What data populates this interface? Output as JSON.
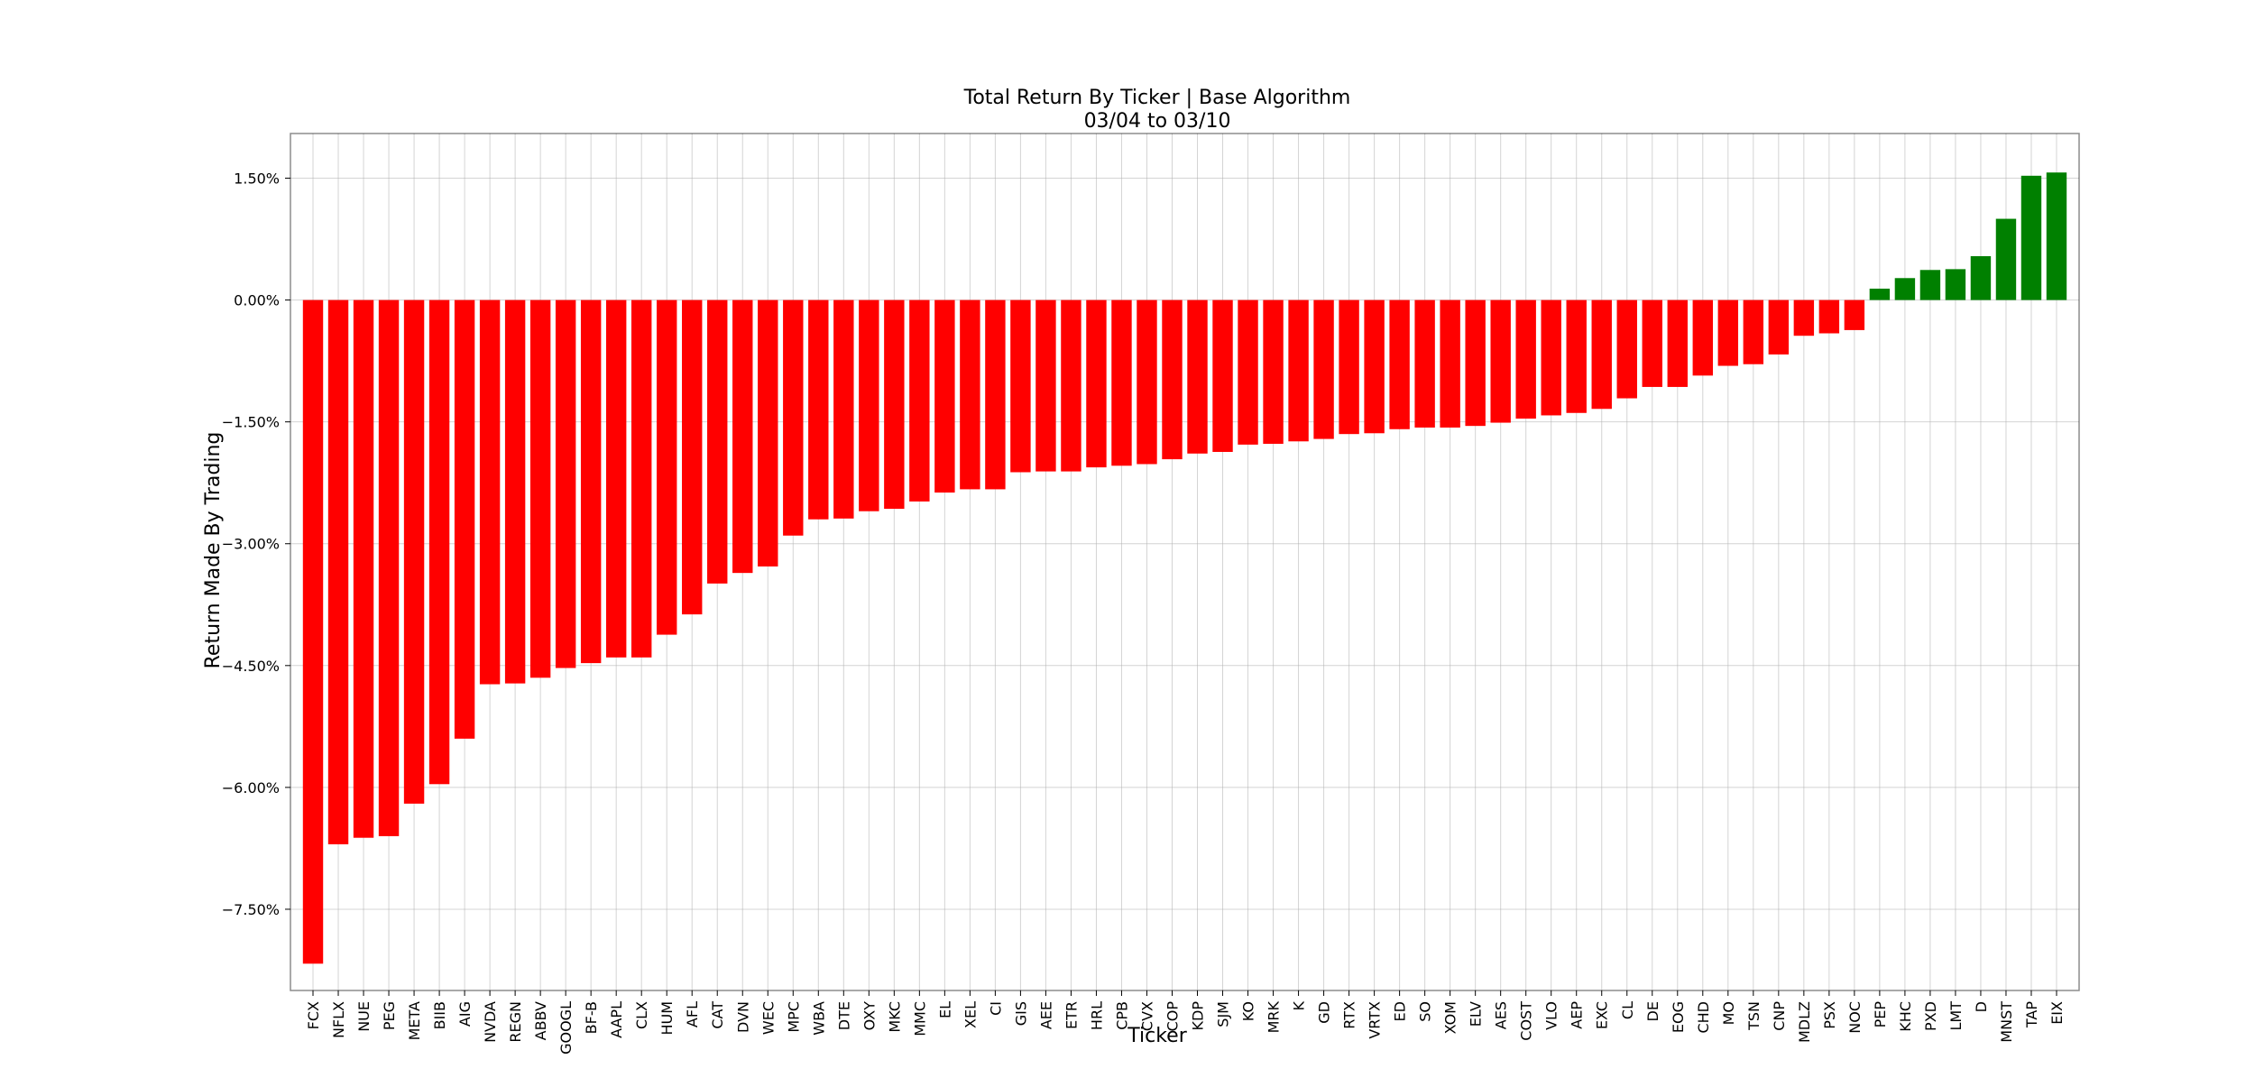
{
  "chart_data": {
    "type": "bar",
    "title": "Total Return By Ticker | Base Algorithm",
    "subtitle": "03/04 to 03/10",
    "xlabel": "Ticker",
    "ylabel": "Return Made By Trading",
    "ylim": [
      -8.5,
      2.05
    ],
    "yticks": [
      1.5,
      0.0,
      -1.5,
      -3.0,
      -4.5,
      -6.0,
      -7.5
    ],
    "ytick_labels": [
      "1.50%",
      "0.00%",
      "−1.50%",
      "−3.00%",
      "−4.50%",
      "−6.00%",
      "−7.50%"
    ],
    "grid": true,
    "positive_color": "#008000",
    "negative_color": "#ff0000",
    "categories": [
      "FCX",
      "NFLX",
      "NUE",
      "PEG",
      "META",
      "BIIB",
      "AIG",
      "NVDA",
      "REGN",
      "ABBV",
      "GOOGL",
      "BF-B",
      "AAPL",
      "CLX",
      "HUM",
      "AFL",
      "CAT",
      "DVN",
      "WEC",
      "MPC",
      "WBA",
      "DTE",
      "OXY",
      "MKC",
      "MMC",
      "EL",
      "XEL",
      "CI",
      "GIS",
      "AEE",
      "ETR",
      "HRL",
      "CPB",
      "CVX",
      "COP",
      "KDP",
      "SJM",
      "KO",
      "MRK",
      "K",
      "GD",
      "RTX",
      "VRTX",
      "ED",
      "SO",
      "XOM",
      "ELV",
      "AES",
      "COST",
      "VLO",
      "AEP",
      "EXC",
      "CL",
      "DE",
      "EOG",
      "CHD",
      "MO",
      "TSN",
      "CNP",
      "MDLZ",
      "PSX",
      "NOC",
      "PEP",
      "KHC",
      "PXD",
      "LMT",
      "D",
      "MNST",
      "TAP",
      "EIX"
    ],
    "values": [
      -8.17,
      -6.7,
      -6.62,
      -6.6,
      -6.2,
      -5.96,
      -5.4,
      -4.73,
      -4.72,
      -4.65,
      -4.53,
      -4.47,
      -4.4,
      -4.4,
      -4.12,
      -3.87,
      -3.49,
      -3.36,
      -3.28,
      -2.9,
      -2.7,
      -2.69,
      -2.6,
      -2.57,
      -2.48,
      -2.37,
      -2.33,
      -2.33,
      -2.12,
      -2.11,
      -2.11,
      -2.06,
      -2.04,
      -2.02,
      -1.96,
      -1.89,
      -1.87,
      -1.78,
      -1.77,
      -1.74,
      -1.71,
      -1.65,
      -1.64,
      -1.59,
      -1.57,
      -1.57,
      -1.55,
      -1.51,
      -1.46,
      -1.42,
      -1.39,
      -1.34,
      -1.21,
      -1.07,
      -1.07,
      -0.93,
      -0.81,
      -0.79,
      -0.67,
      -0.44,
      -0.41,
      -0.37,
      0.14,
      0.27,
      0.37,
      0.38,
      0.54,
      1.0,
      1.53,
      1.57
    ]
  }
}
